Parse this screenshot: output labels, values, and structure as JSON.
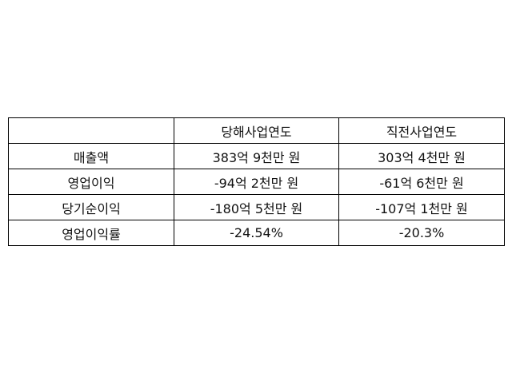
{
  "table": {
    "headers": [
      "",
      "당해사업연도",
      "직전사업연도"
    ],
    "rows": [
      [
        "매출액",
        "383억 9천만 원",
        "303억 4천만 원"
      ],
      [
        "영업이익",
        "-94억 2천만 원",
        "-61억 6천만 원"
      ],
      [
        "당기순이익",
        "-180억 5천만 원",
        "-107억 1천만 원"
      ],
      [
        "영업이익률",
        "-24.54%",
        "-20.3%"
      ]
    ]
  }
}
